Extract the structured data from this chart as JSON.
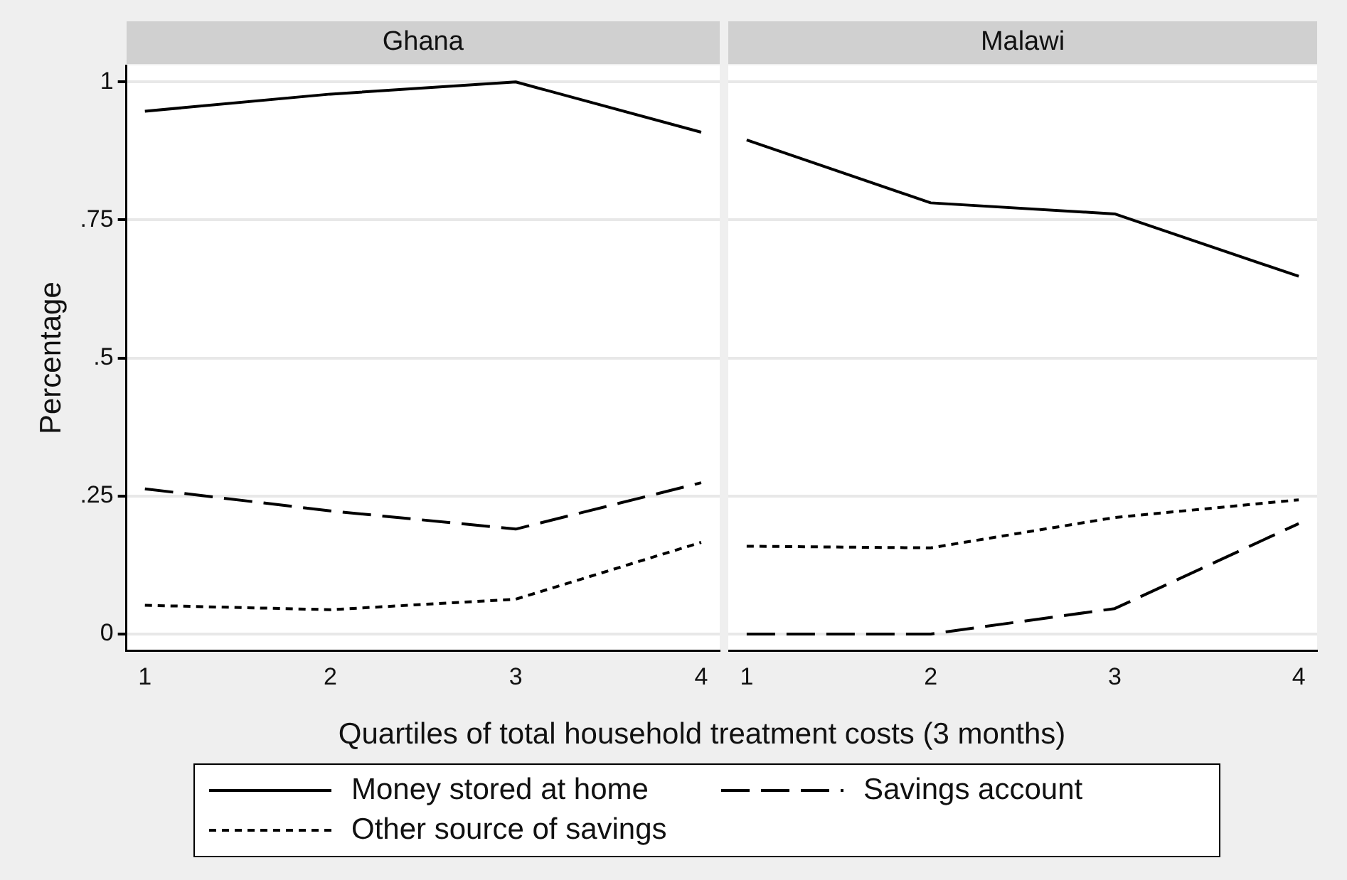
{
  "chart_data": [
    {
      "type": "line",
      "title": "Ghana",
      "ylabel": "Percentage",
      "xlabel": "Quartiles of total household treatment costs (3 months)",
      "x": [
        1,
        2,
        3,
        4
      ],
      "xlim": [
        0.9,
        4.1
      ],
      "xticks": [
        1,
        2,
        3,
        4
      ],
      "ylim": [
        -0.03,
        1.03
      ],
      "yticks": [
        {
          "value": 0,
          "label": "0"
        },
        {
          "value": 0.25,
          "label": ".25"
        },
        {
          "value": 0.5,
          "label": ".5"
        },
        {
          "value": 0.75,
          "label": ".75"
        },
        {
          "value": 1,
          "label": "1"
        }
      ],
      "grid": "y",
      "legend": "bottom",
      "marker": "none",
      "series": [
        {
          "name": "Money stored at home",
          "color": "#000000",
          "line_style": "solid",
          "values": [
            0.947,
            0.978,
            1.0,
            0.909
          ]
        },
        {
          "name": "Savings account",
          "color": "#000000",
          "line_style": "dashed",
          "values": [
            0.263,
            0.223,
            0.19,
            0.274
          ]
        },
        {
          "name": "Other source of savings",
          "color": "#000000",
          "line_style": "dotted",
          "values": [
            0.052,
            0.044,
            0.063,
            0.166
          ]
        }
      ]
    },
    {
      "type": "line",
      "title": "Malawi",
      "x": [
        1,
        2,
        3,
        4
      ],
      "xlim": [
        0.9,
        4.1
      ],
      "xticks": [
        1,
        2,
        3,
        4
      ],
      "ylim": [
        -0.03,
        1.03
      ],
      "yticks": [
        {
          "value": 0,
          "label": null
        },
        {
          "value": 0.25,
          "label": null
        },
        {
          "value": 0.5,
          "label": null
        },
        {
          "value": 0.75,
          "label": null
        },
        {
          "value": 1,
          "label": null
        }
      ],
      "grid": "y",
      "tick_labels": "x",
      "marker": "none",
      "series": [
        {
          "color": "#000000",
          "line_style": "solid",
          "values": [
            0.895,
            0.781,
            0.761,
            0.648
          ]
        },
        {
          "color": "#000000",
          "line_style": "dashed",
          "values": [
            0,
            0,
            0.046,
            0.2
          ]
        },
        {
          "color": "#000000",
          "line_style": "dotted",
          "values": [
            0.159,
            0.156,
            0.211,
            0.243
          ]
        }
      ]
    }
  ]
}
